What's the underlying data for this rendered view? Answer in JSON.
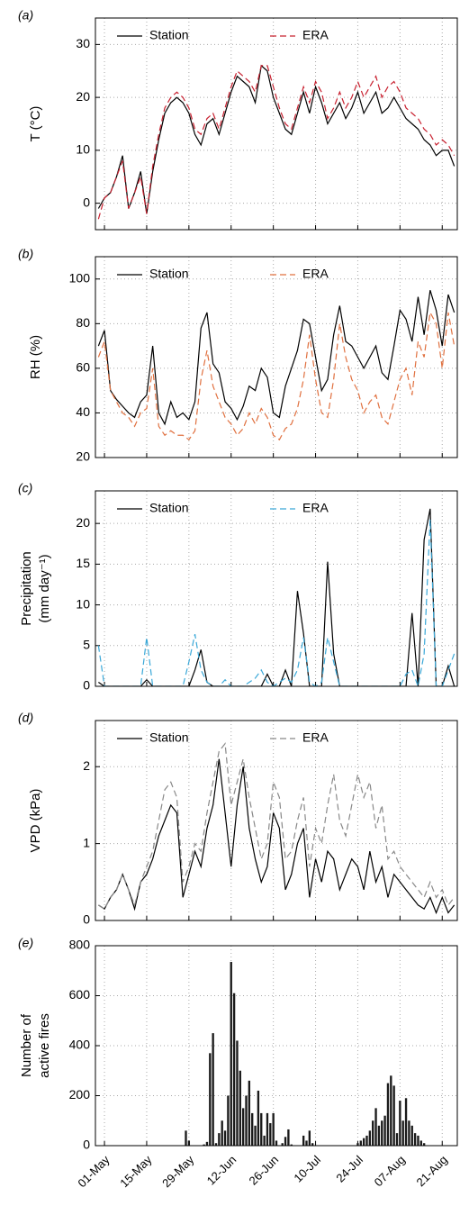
{
  "chart_data": [
    {
      "type": "line",
      "panel_label": "(a)",
      "ylabel": [
        "T (°C)"
      ],
      "ylim": [
        -5,
        35
      ],
      "yticks": [
        0,
        10,
        20,
        30
      ],
      "grid": true,
      "x": [
        -2,
        0,
        2,
        4,
        6,
        8,
        10,
        12,
        14,
        16,
        18,
        20,
        22,
        24,
        26,
        28,
        30,
        32,
        34,
        36,
        38,
        40,
        42,
        44,
        46,
        48,
        50,
        52,
        54,
        56,
        58,
        60,
        62,
        64,
        66,
        68,
        70,
        72,
        74,
        76,
        78,
        80,
        82,
        84,
        86,
        88,
        90,
        92,
        94,
        96,
        98,
        100,
        102,
        104,
        106,
        108,
        110,
        112,
        114,
        116
      ],
      "series": [
        {
          "name": "Station",
          "color": "#000000",
          "linestyle": "solid",
          "values": [
            -1,
            1,
            2,
            5,
            9,
            -1,
            2,
            6,
            -2,
            6,
            12,
            17,
            19,
            20,
            19,
            17,
            13,
            11,
            15,
            16,
            13,
            17,
            21,
            24,
            23,
            22,
            19,
            26,
            25,
            20,
            17,
            14,
            13,
            17,
            21,
            17,
            22,
            19,
            15,
            17,
            19,
            16,
            18,
            21,
            17,
            19,
            21,
            17,
            18,
            20,
            18,
            16,
            15,
            14,
            12,
            11,
            9,
            10,
            10,
            7
          ]
        },
        {
          "name": "ERA",
          "color": "#c8202f",
          "linestyle": "dashed",
          "values": [
            -3,
            1,
            2,
            5,
            8,
            -1,
            2,
            5,
            -2,
            7,
            13,
            18,
            20,
            21,
            20,
            18,
            14,
            13,
            16,
            17,
            14,
            18,
            22,
            25,
            24,
            23,
            21,
            26,
            26,
            22,
            18,
            15,
            14,
            18,
            22,
            19,
            23,
            21,
            16,
            18,
            21,
            18,
            20,
            23,
            20,
            22,
            24,
            20,
            22,
            23,
            21,
            18,
            17,
            16,
            14,
            13,
            11,
            12,
            11,
            9
          ]
        }
      ]
    },
    {
      "type": "line",
      "panel_label": "(b)",
      "ylabel": [
        "RH (%)"
      ],
      "ylim": [
        20,
        110
      ],
      "yticks": [
        20,
        40,
        60,
        80,
        100
      ],
      "grid": true,
      "x": [
        -2,
        0,
        2,
        4,
        6,
        8,
        10,
        12,
        14,
        16,
        18,
        20,
        22,
        24,
        26,
        28,
        30,
        32,
        34,
        36,
        38,
        40,
        42,
        44,
        46,
        48,
        50,
        52,
        54,
        56,
        58,
        60,
        62,
        64,
        66,
        68,
        70,
        72,
        74,
        76,
        78,
        80,
        82,
        84,
        86,
        88,
        90,
        92,
        94,
        96,
        98,
        100,
        102,
        104,
        106,
        108,
        110,
        112,
        114,
        116
      ],
      "series": [
        {
          "name": "Station",
          "color": "#000000",
          "linestyle": "solid",
          "values": [
            70,
            77,
            50,
            46,
            43,
            40,
            38,
            45,
            48,
            70,
            40,
            35,
            45,
            38,
            40,
            37,
            45,
            78,
            85,
            62,
            58,
            45,
            42,
            37,
            43,
            52,
            50,
            60,
            56,
            40,
            38,
            52,
            60,
            68,
            82,
            80,
            65,
            50,
            55,
            75,
            88,
            72,
            70,
            65,
            60,
            65,
            70,
            58,
            55,
            70,
            86,
            82,
            72,
            92,
            75,
            95,
            86,
            70,
            93,
            85
          ]
        },
        {
          "name": "ERA",
          "color": "#e0703f",
          "linestyle": "dashed",
          "values": [
            65,
            72,
            50,
            45,
            40,
            38,
            34,
            40,
            42,
            60,
            34,
            30,
            32,
            30,
            30,
            28,
            32,
            55,
            68,
            52,
            45,
            38,
            35,
            30,
            33,
            40,
            35,
            42,
            38,
            30,
            28,
            33,
            35,
            42,
            55,
            75,
            55,
            40,
            38,
            55,
            80,
            65,
            55,
            50,
            40,
            45,
            48,
            38,
            35,
            45,
            55,
            60,
            48,
            72,
            65,
            85,
            80,
            60,
            85,
            70
          ]
        }
      ]
    },
    {
      "type": "line",
      "panel_label": "(c)",
      "ylabel": [
        "Precipitation",
        "(mm day⁻¹)"
      ],
      "ylim": [
        0,
        24
      ],
      "yticks": [
        0,
        5,
        10,
        15,
        20
      ],
      "grid": true,
      "x": [
        -2,
        0,
        2,
        4,
        6,
        8,
        10,
        12,
        14,
        16,
        18,
        20,
        22,
        24,
        26,
        28,
        30,
        32,
        34,
        36,
        38,
        40,
        42,
        44,
        46,
        48,
        50,
        52,
        54,
        56,
        58,
        60,
        62,
        64,
        66,
        68,
        70,
        72,
        74,
        76,
        78,
        80,
        82,
        84,
        86,
        88,
        90,
        92,
        94,
        96,
        98,
        100,
        102,
        104,
        106,
        108,
        110,
        112,
        114,
        116
      ],
      "series": [
        {
          "name": "Station",
          "color": "#000000",
          "linestyle": "solid",
          "values": [
            0.5,
            0,
            0,
            0,
            0,
            0,
            0,
            0,
            0.8,
            0,
            0,
            0,
            0,
            0,
            0,
            0,
            2,
            4.5,
            0.5,
            0,
            0,
            0,
            0,
            0,
            0,
            0,
            0,
            0,
            1.5,
            0,
            0,
            2,
            0,
            11.7,
            6.5,
            0,
            0,
            0,
            15.3,
            4,
            0,
            0,
            0,
            0,
            0,
            0,
            0,
            0,
            0,
            0,
            0,
            0,
            9,
            0,
            18,
            21.8,
            0,
            0,
            2.5,
            0
          ]
        },
        {
          "name": "ERA",
          "color": "#3aa8d8",
          "linestyle": "dashed",
          "values": [
            5,
            0,
            0,
            0,
            0,
            0,
            0,
            0,
            6,
            0,
            0,
            0,
            0,
            0,
            0,
            3,
            6.4,
            2,
            0.5,
            0,
            0,
            0.8,
            0,
            0,
            0,
            0.5,
            1,
            2,
            0.5,
            0,
            0.5,
            1,
            0.5,
            2,
            6,
            0.5,
            0,
            0.5,
            6,
            3,
            0,
            0,
            0,
            0,
            0,
            0,
            0,
            0,
            0,
            0,
            0,
            1.5,
            2,
            0,
            4,
            20.5,
            0,
            0,
            2,
            4
          ]
        }
      ]
    },
    {
      "type": "line",
      "panel_label": "(d)",
      "ylabel": [
        "VPD (kPa)"
      ],
      "ylim": [
        0,
        2.6
      ],
      "yticks": [
        0,
        1,
        2
      ],
      "grid": true,
      "x": [
        -2,
        0,
        2,
        4,
        6,
        8,
        10,
        12,
        14,
        16,
        18,
        20,
        22,
        24,
        26,
        28,
        30,
        32,
        34,
        36,
        38,
        40,
        42,
        44,
        46,
        48,
        50,
        52,
        54,
        56,
        58,
        60,
        62,
        64,
        66,
        68,
        70,
        72,
        74,
        76,
        78,
        80,
        82,
        84,
        86,
        88,
        90,
        92,
        94,
        96,
        98,
        100,
        102,
        104,
        106,
        108,
        110,
        112,
        114,
        116
      ],
      "series": [
        {
          "name": "Station",
          "color": "#000000",
          "linestyle": "solid",
          "values": [
            0.2,
            0.15,
            0.3,
            0.4,
            0.6,
            0.4,
            0.15,
            0.5,
            0.6,
            0.8,
            1.1,
            1.3,
            1.5,
            1.4,
            0.3,
            0.6,
            0.9,
            0.7,
            1.2,
            1.5,
            2.1,
            1.4,
            0.7,
            1.5,
            2,
            1.2,
            0.8,
            0.5,
            0.7,
            1.4,
            1.2,
            0.4,
            0.6,
            1,
            1.2,
            0.3,
            0.8,
            0.5,
            0.9,
            0.8,
            0.4,
            0.6,
            0.8,
            0.7,
            0.4,
            0.9,
            0.5,
            0.7,
            0.3,
            0.6,
            0.5,
            0.4,
            0.3,
            0.2,
            0.15,
            0.3,
            0.1,
            0.3,
            0.1,
            0.2
          ]
        },
        {
          "name": "ERA",
          "color": "#888888",
          "linestyle": "dashed",
          "values": [
            0.2,
            0.15,
            0.3,
            0.4,
            0.6,
            0.4,
            0.2,
            0.5,
            0.7,
            0.9,
            1.3,
            1.7,
            1.8,
            1.6,
            0.5,
            0.7,
            1,
            0.9,
            1.4,
            1.8,
            2.2,
            2.3,
            1.5,
            1.8,
            2.1,
            1.6,
            1.2,
            0.8,
            1,
            1.8,
            1.6,
            0.8,
            0.9,
            1.3,
            1.6,
            0.7,
            1.2,
            1,
            1.5,
            1.9,
            1.3,
            1.1,
            1.5,
            1.9,
            1.6,
            1.8,
            1.2,
            1.5,
            0.8,
            0.9,
            0.7,
            0.6,
            0.5,
            0.4,
            0.3,
            0.5,
            0.3,
            0.4,
            0.2,
            0.3
          ]
        }
      ]
    },
    {
      "type": "bar",
      "panel_label": "(e)",
      "ylabel": [
        "Number of",
        "active fires"
      ],
      "ylim": [
        0,
        800
      ],
      "yticks": [
        0,
        200,
        400,
        600,
        800
      ],
      "grid": true,
      "color": "#1a1a1a",
      "xlim": [
        -3,
        117
      ],
      "xticks": [
        {
          "value": 0,
          "label": "01-May"
        },
        {
          "value": 14,
          "label": "15-May"
        },
        {
          "value": 28,
          "label": "29-May"
        },
        {
          "value": 42,
          "label": "12-Jun"
        },
        {
          "value": 56,
          "label": "26-Jun"
        },
        {
          "value": 70,
          "label": "10-Jul"
        },
        {
          "value": 84,
          "label": "24-Jul"
        },
        {
          "value": 98,
          "label": "07-Aug"
        },
        {
          "value": 112,
          "label": "21-Aug"
        }
      ],
      "x": [
        27,
        28,
        33,
        34,
        35,
        36,
        37,
        38,
        39,
        40,
        41,
        42,
        43,
        44,
        45,
        46,
        47,
        48,
        49,
        50,
        51,
        52,
        53,
        54,
        55,
        56,
        57,
        59,
        60,
        61,
        62,
        66,
        67,
        68,
        69,
        84,
        85,
        86,
        87,
        88,
        89,
        90,
        91,
        92,
        93,
        94,
        95,
        96,
        97,
        98,
        99,
        100,
        101,
        102,
        103,
        104,
        105,
        106
      ],
      "values": [
        60,
        20,
        5,
        15,
        370,
        450,
        10,
        50,
        100,
        60,
        200,
        735,
        610,
        420,
        300,
        150,
        200,
        260,
        130,
        80,
        220,
        130,
        40,
        130,
        90,
        130,
        20,
        10,
        35,
        65,
        5,
        40,
        20,
        60,
        10,
        10,
        20,
        30,
        40,
        60,
        100,
        150,
        80,
        100,
        120,
        250,
        280,
        240,
        50,
        180,
        100,
        190,
        100,
        80,
        50,
        40,
        20,
        10
      ]
    }
  ]
}
